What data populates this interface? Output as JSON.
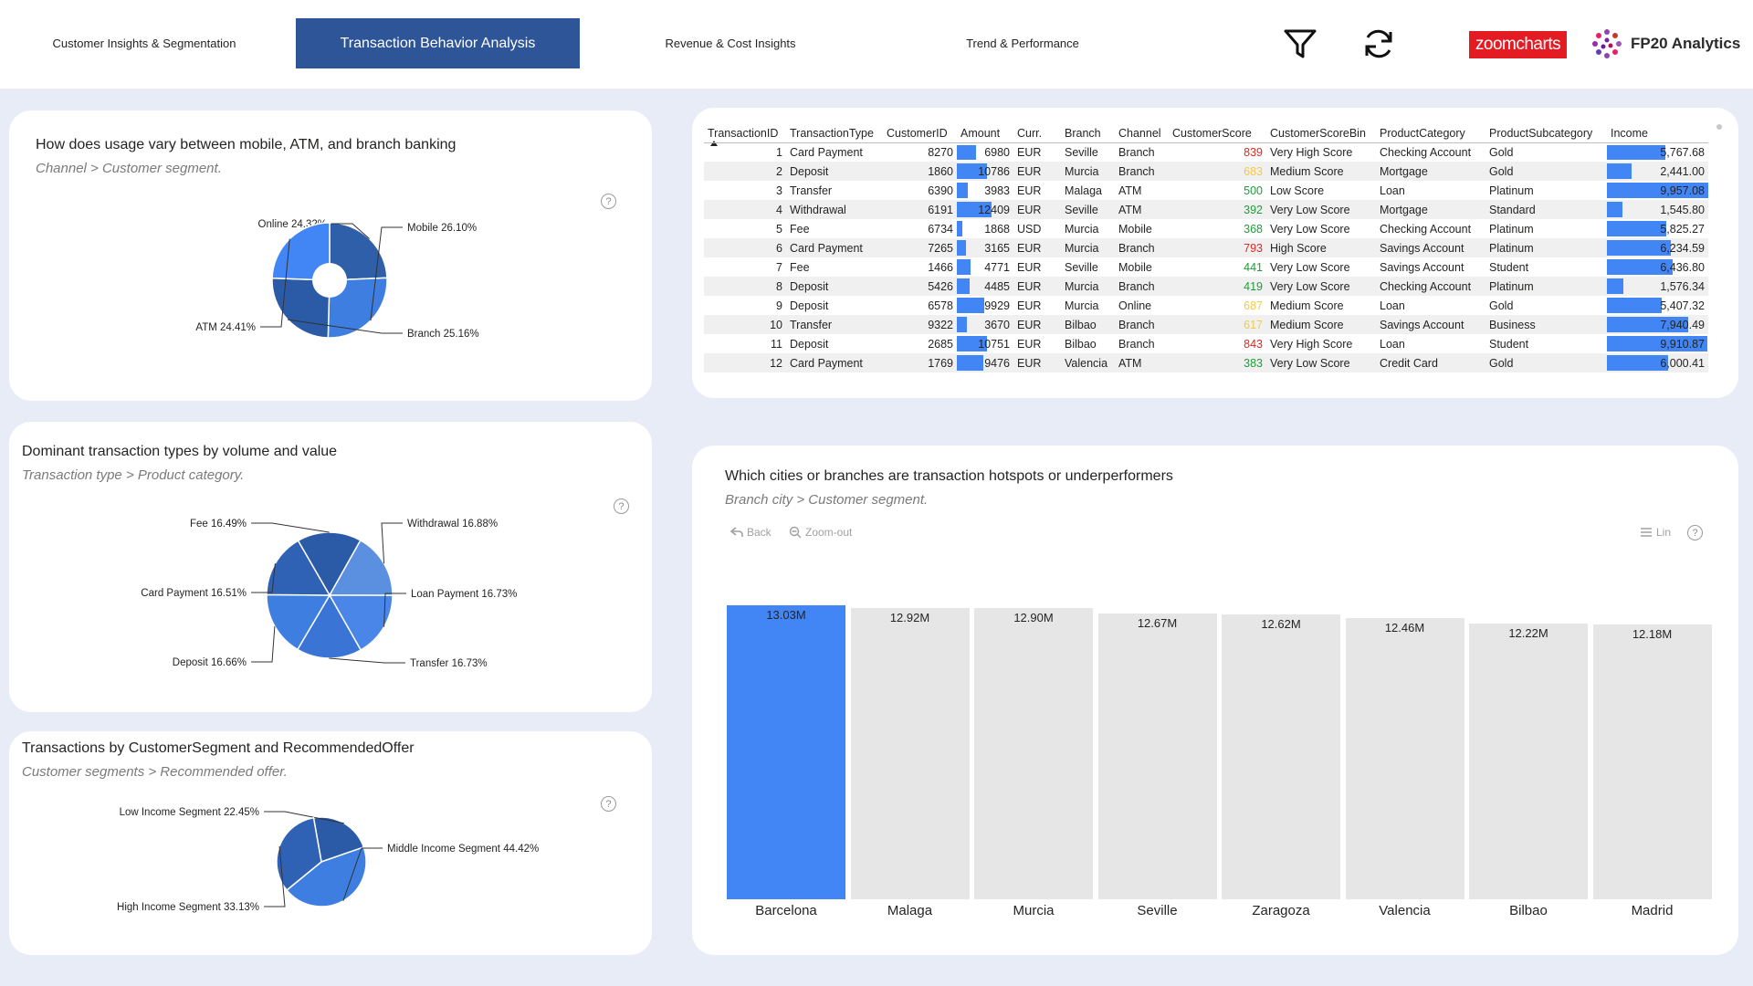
{
  "nav": {
    "tabs": [
      {
        "label": "Customer Insights & Segmentation",
        "active": false
      },
      {
        "label": "Transaction Behavior Analysis",
        "active": true
      },
      {
        "label": "Revenue & Cost Insights",
        "active": false
      },
      {
        "label": "Trend & Performance",
        "active": false
      }
    ],
    "icons": [
      "filter-icon",
      "refresh-icon"
    ],
    "zoomcharts_logo": "zoomcharts",
    "brand": "FP20 Analytics",
    "accent_color": "#2e5597"
  },
  "usage_card": {
    "title": "How does usage vary between mobile, ATM, and branch banking",
    "subtitle": "Channel > Customer segment.",
    "slices": [
      {
        "label": "Online 24.32%",
        "value": 24.32
      },
      {
        "label": "Mobile 26.10%",
        "value": 26.1
      },
      {
        "label": "Branch 25.16%",
        "value": 25.16
      },
      {
        "label": "ATM 24.41%",
        "value": 24.41
      }
    ]
  },
  "types_card": {
    "title": "Dominant transaction types by volume and value",
    "subtitle": "Transaction type > Product category.",
    "slices": [
      {
        "label": "Fee 16.49%",
        "value": 16.49
      },
      {
        "label": "Withdrawal 16.88%",
        "value": 16.88
      },
      {
        "label": "Loan Payment 16.73%",
        "value": 16.73
      },
      {
        "label": "Transfer 16.73%",
        "value": 16.73
      },
      {
        "label": "Deposit 16.66%",
        "value": 16.66
      },
      {
        "label": "Card Payment 16.51%",
        "value": 16.51
      }
    ]
  },
  "segment_card": {
    "title": "Transactions by CustomerSegment and RecommendedOffer",
    "subtitle": "Customer segments > Recommended offer.",
    "slices": [
      {
        "label": "Low Income Segment 22.45%",
        "value": 22.45
      },
      {
        "label": "Middle Income Segment 44.42%",
        "value": 44.42
      },
      {
        "label": "High Income Segment 33.13%",
        "value": 33.13
      }
    ]
  },
  "table": {
    "columns": [
      "TransactionID",
      "TransactionType",
      "CustomerID",
      "Amount",
      "Curr.",
      "Branch",
      "Channel",
      "CustomerScore",
      "CustomerScoreBin",
      "ProductCategory",
      "ProductSubcategory",
      "Income"
    ],
    "rows": [
      {
        "id": "1",
        "type": "Card Payment",
        "customer": "8270",
        "amount": "6980",
        "amount_val": 6980,
        "curr": "EUR",
        "branch": "Seville",
        "channel": "Branch",
        "score": "839",
        "score_color": "red",
        "bin": "Very High Score",
        "category": "Checking Account",
        "subcategory": "Gold",
        "income": "5,767.68",
        "income_val": 5767.68
      },
      {
        "id": "2",
        "type": "Deposit",
        "customer": "1860",
        "amount": "10786",
        "amount_val": 10786,
        "curr": "EUR",
        "branch": "Murcia",
        "channel": "Branch",
        "score": "683",
        "score_color": "amber",
        "bin": "Medium Score",
        "category": "Mortgage",
        "subcategory": "Gold",
        "income": "2,441.00",
        "income_val": 2441.0
      },
      {
        "id": "3",
        "type": "Transfer",
        "customer": "6390",
        "amount": "3983",
        "amount_val": 3983,
        "curr": "EUR",
        "branch": "Malaga",
        "channel": "ATM",
        "score": "500",
        "score_color": "green",
        "bin": "Low Score",
        "category": "Loan",
        "subcategory": "Platinum",
        "income": "9,957.08",
        "income_val": 9957.08
      },
      {
        "id": "4",
        "type": "Withdrawal",
        "customer": "6191",
        "amount": "12409",
        "amount_val": 12409,
        "curr": "EUR",
        "branch": "Seville",
        "channel": "ATM",
        "score": "392",
        "score_color": "green",
        "bin": "Very Low Score",
        "category": "Mortgage",
        "subcategory": "Standard",
        "income": "1,545.80",
        "income_val": 1545.8
      },
      {
        "id": "5",
        "type": "Fee",
        "customer": "6734",
        "amount": "1868",
        "amount_val": 1868,
        "curr": "USD",
        "branch": "Murcia",
        "channel": "Mobile",
        "score": "368",
        "score_color": "green",
        "bin": "Very Low Score",
        "category": "Checking Account",
        "subcategory": "Platinum",
        "income": "5,825.27",
        "income_val": 5825.27
      },
      {
        "id": "6",
        "type": "Card Payment",
        "customer": "7265",
        "amount": "3165",
        "amount_val": 3165,
        "curr": "EUR",
        "branch": "Murcia",
        "channel": "Branch",
        "score": "793",
        "score_color": "red",
        "bin": "High Score",
        "category": "Savings Account",
        "subcategory": "Platinum",
        "income": "6,234.59",
        "income_val": 6234.59
      },
      {
        "id": "7",
        "type": "Fee",
        "customer": "1466",
        "amount": "4771",
        "amount_val": 4771,
        "curr": "EUR",
        "branch": "Seville",
        "channel": "Mobile",
        "score": "441",
        "score_color": "green",
        "bin": "Very Low Score",
        "category": "Savings Account",
        "subcategory": "Student",
        "income": "6,436.80",
        "income_val": 6436.8
      },
      {
        "id": "8",
        "type": "Deposit",
        "customer": "5426",
        "amount": "4485",
        "amount_val": 4485,
        "curr": "EUR",
        "branch": "Murcia",
        "channel": "Branch",
        "score": "419",
        "score_color": "green",
        "bin": "Very Low Score",
        "category": "Checking Account",
        "subcategory": "Platinum",
        "income": "1,576.34",
        "income_val": 1576.34
      },
      {
        "id": "9",
        "type": "Deposit",
        "customer": "6578",
        "amount": "9929",
        "amount_val": 9929,
        "curr": "EUR",
        "branch": "Murcia",
        "channel": "Online",
        "score": "687",
        "score_color": "amber",
        "bin": "Medium Score",
        "category": "Loan",
        "subcategory": "Gold",
        "income": "5,407.32",
        "income_val": 5407.32
      },
      {
        "id": "10",
        "type": "Transfer",
        "customer": "9322",
        "amount": "3670",
        "amount_val": 3670,
        "curr": "EUR",
        "branch": "Bilbao",
        "channel": "Branch",
        "score": "617",
        "score_color": "amber",
        "bin": "Medium Score",
        "category": "Savings Account",
        "subcategory": "Business",
        "income": "7,940.49",
        "income_val": 7940.49
      },
      {
        "id": "11",
        "type": "Deposit",
        "customer": "2685",
        "amount": "10751",
        "amount_val": 10751,
        "curr": "EUR",
        "branch": "Bilbao",
        "channel": "Branch",
        "score": "843",
        "score_color": "red",
        "bin": "Very High Score",
        "category": "Loan",
        "subcategory": "Student",
        "income": "9,910.87",
        "income_val": 9910.87
      },
      {
        "id": "12",
        "type": "Card Payment",
        "customer": "1769",
        "amount": "9476",
        "amount_val": 9476,
        "curr": "EUR",
        "branch": "Valencia",
        "channel": "ATM",
        "score": "383",
        "score_color": "green",
        "bin": "Very Low Score",
        "category": "Credit Card",
        "subcategory": "Gold",
        "income": "6,000.41",
        "income_val": 6000.41
      }
    ]
  },
  "city_card": {
    "title": "Which cities or branches are transaction hotspots or underperformers",
    "subtitle": "Branch city > Customer segment.",
    "back_label": "Back",
    "zoom_out_label": "Zoom-out",
    "scale_label": "Lin"
  },
  "chart_data": {
    "type": "bar",
    "categories": [
      "Barcelona",
      "Malaga",
      "Murcia",
      "Seville",
      "Zaragoza",
      "Valencia",
      "Bilbao",
      "Madrid"
    ],
    "values": [
      13.03,
      12.92,
      12.9,
      12.67,
      12.62,
      12.46,
      12.22,
      12.18
    ],
    "value_labels": [
      "13.03M",
      "12.92M",
      "12.90M",
      "12.67M",
      "12.62M",
      "12.46M",
      "12.22M",
      "12.18M"
    ],
    "highlight_color": "#4285f4",
    "bar_color": "#e6e6e6",
    "ylim": [
      0,
      13.03
    ]
  }
}
